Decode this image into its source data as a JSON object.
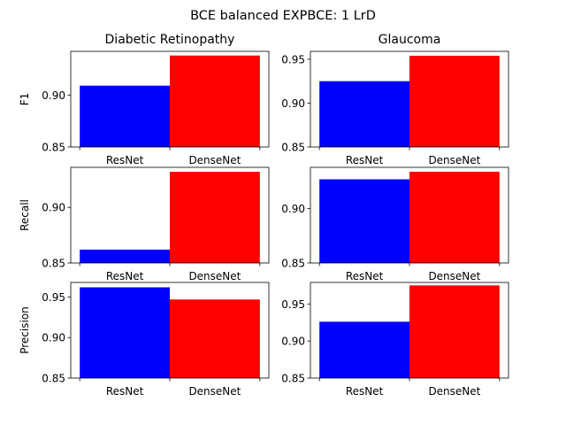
{
  "figure": {
    "suptitle": "BCE balanced EXPBCE: 1 LrD",
    "bar_colors": [
      "#0000ff",
      "#ff0000"
    ]
  },
  "chart_data": [
    {
      "type": "bar",
      "title": "Diabetic Retinopathy",
      "ylabel": "F1",
      "categories": [
        "ResNet",
        "DenseNet"
      ],
      "values": [
        0.909,
        0.938
      ],
      "ylim": [
        0.85,
        0.942
      ],
      "yticks": [
        "0.85",
        "0.90"
      ],
      "grid": false
    },
    {
      "type": "bar",
      "title": "Glaucoma",
      "ylabel": "",
      "categories": [
        "ResNet",
        "DenseNet"
      ],
      "values": [
        0.925,
        0.954
      ],
      "ylim": [
        0.85,
        0.959
      ],
      "yticks": [
        "0.85",
        "0.90",
        "0.95"
      ],
      "grid": false
    },
    {
      "type": "bar",
      "title": "",
      "ylabel": "Recall",
      "categories": [
        "ResNet",
        "DenseNet"
      ],
      "values": [
        0.862,
        0.932
      ],
      "ylim": [
        0.85,
        0.936
      ],
      "yticks": [
        "0.85",
        "0.90"
      ],
      "grid": false
    },
    {
      "type": "bar",
      "title": "",
      "ylabel": "",
      "categories": [
        "ResNet",
        "DenseNet"
      ],
      "values": [
        0.927,
        0.934
      ],
      "ylim": [
        0.85,
        0.938
      ],
      "yticks": [
        "0.85",
        "0.90"
      ],
      "grid": false
    },
    {
      "type": "bar",
      "title": "",
      "ylabel": "Precision",
      "categories": [
        "ResNet",
        "DenseNet"
      ],
      "values": [
        0.962,
        0.947
      ],
      "ylim": [
        0.85,
        0.968
      ],
      "yticks": [
        "0.85",
        "0.90",
        "0.95"
      ],
      "grid": false
    },
    {
      "type": "bar",
      "title": "",
      "ylabel": "",
      "categories": [
        "ResNet",
        "DenseNet"
      ],
      "values": [
        0.926,
        0.975
      ],
      "ylim": [
        0.85,
        0.979
      ],
      "yticks": [
        "0.85",
        "0.90",
        "0.95"
      ],
      "grid": false
    }
  ]
}
